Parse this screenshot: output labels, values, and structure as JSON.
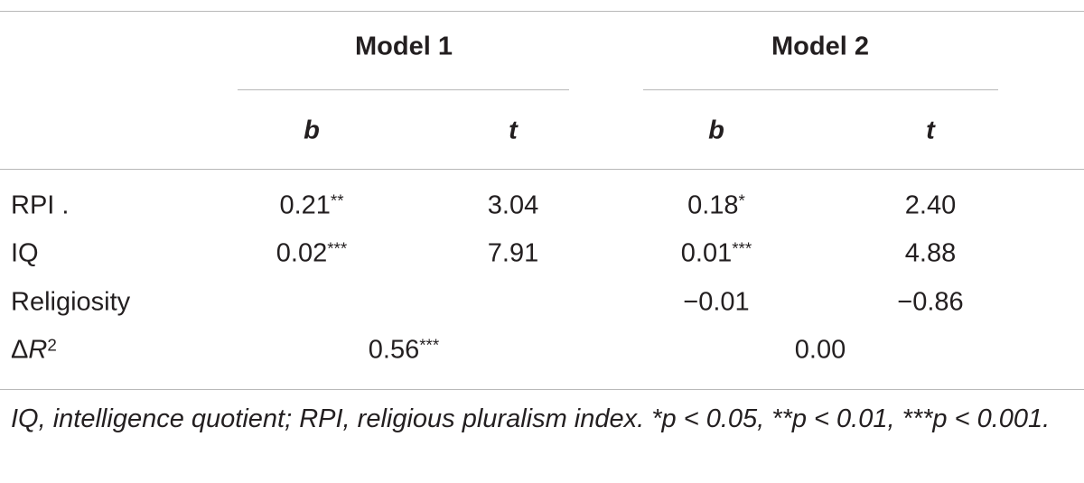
{
  "table": {
    "groups": [
      "Model 1",
      "Model 2"
    ],
    "subheaders": [
      "b",
      "t",
      "b",
      "t"
    ],
    "rows": [
      {
        "label": "RPI .",
        "cells": [
          {
            "value": "0.21",
            "sig": "**"
          },
          {
            "value": "3.04"
          },
          {
            "value": "0.18",
            "sig": "*"
          },
          {
            "value": "2.40"
          }
        ]
      },
      {
        "label": "IQ",
        "cells": [
          {
            "value": "0.02",
            "sig": "***"
          },
          {
            "value": "7.91"
          },
          {
            "value": "0.01",
            "sig": "***"
          },
          {
            "value": "4.88"
          }
        ]
      },
      {
        "label": "Religiosity",
        "cells": [
          null,
          null,
          {
            "value": "−0.01"
          },
          {
            "value": "−0.86"
          }
        ]
      }
    ],
    "summary": {
      "label": {
        "text": "Δ",
        "italic": "R",
        "sup": "2"
      },
      "spans": [
        {
          "value": "0.56",
          "sig": "***"
        },
        {
          "value": "0.00"
        }
      ]
    },
    "footnote": "IQ, intelligence quotient; RPI, religious pluralism index. *p < 0.05, **p < 0.01, ***p < 0.001."
  }
}
